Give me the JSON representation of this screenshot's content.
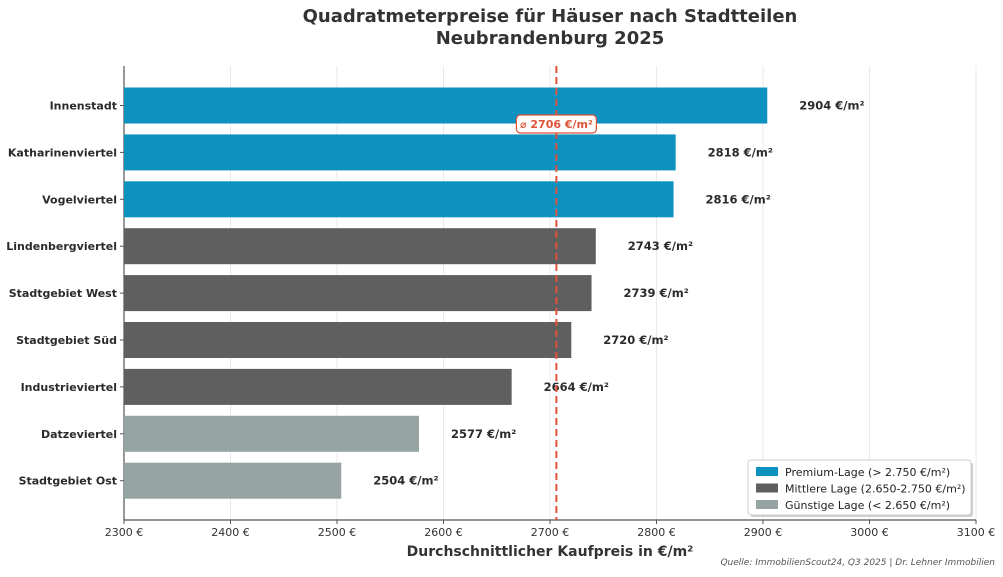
{
  "title_line1": "Quadratmeterpreise für Häuser nach Stadtteilen",
  "title_line2": "Neubrandenburg 2025",
  "source": "Quelle: ImmobilienScout24, Q3 2025 | Dr. Lehner Immobilien",
  "colors": {
    "premium": "#0d92bf",
    "mittlere": "#5f5f5f",
    "guenstige": "#95a3a3",
    "average_line": "#e0533a"
  },
  "chart_data": {
    "type": "bar",
    "orientation": "horizontal",
    "title": "Quadratmeterpreise für Häuser nach Stadtteilen Neubrandenburg 2025",
    "xlabel": "Durchschnittlicher Kaufpreis in €/m²",
    "ylabel": "",
    "xlim": [
      2300,
      3100
    ],
    "x_ticks": [
      2300,
      2400,
      2500,
      2600,
      2700,
      2800,
      2900,
      3000,
      3100
    ],
    "x_tick_labels": [
      "2300 €",
      "2400 €",
      "2500 €",
      "2600 €",
      "2700 €",
      "2800 €",
      "2900 €",
      "3000 €",
      "3100 €"
    ],
    "grid": "vertical",
    "categories": [
      "Innenstadt",
      "Katharinenviertel",
      "Vogelviertel",
      "Lindenbergviertel",
      "Stadtgebiet West",
      "Stadtgebiet Süd",
      "Industrieviertel",
      "Datzeviertel",
      "Stadtgebiet Ost"
    ],
    "values": [
      2904,
      2818,
      2816,
      2743,
      2739,
      2720,
      2664,
      2577,
      2504
    ],
    "value_labels": [
      "2904 €/m²",
      "2818 €/m²",
      "2816 €/m²",
      "2743 €/m²",
      "2739 €/m²",
      "2720 €/m²",
      "2664 €/m²",
      "2577 €/m²",
      "2504 €/m²"
    ],
    "groups": [
      "premium",
      "premium",
      "premium",
      "mittlere",
      "mittlere",
      "mittlere",
      "mittlere",
      "guenstige",
      "guenstige"
    ],
    "average": 2706,
    "average_label": "⌀ 2706 €/m²",
    "legend_position": "bottom-right",
    "legend": [
      {
        "group": "premium",
        "label": "Premium-Lage (> 2.750 €/m²)"
      },
      {
        "group": "mittlere",
        "label": "Mittlere Lage (2.650-2.750 €/m²)"
      },
      {
        "group": "guenstige",
        "label": "Günstige Lage (< 2.650 €/m²)"
      }
    ]
  }
}
